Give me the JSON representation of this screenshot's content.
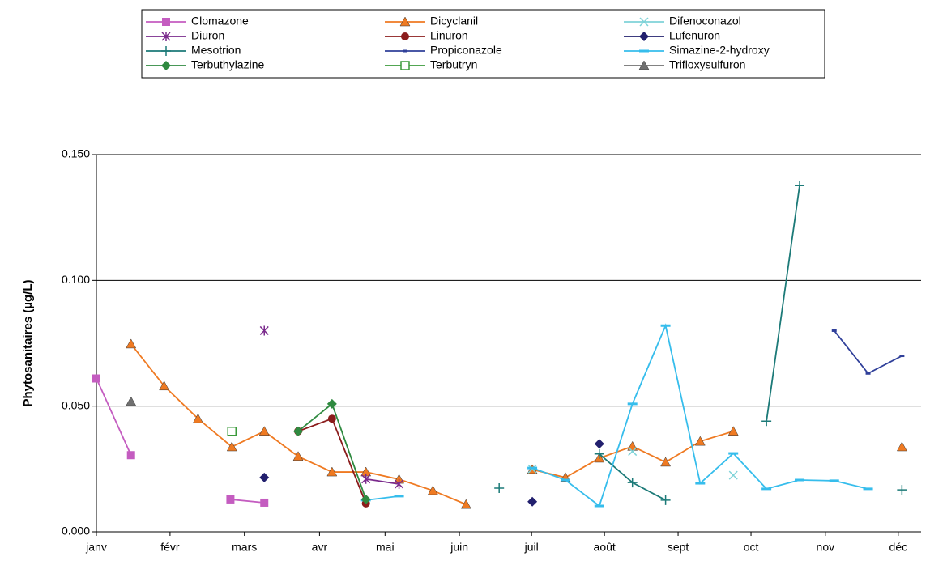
{
  "chart_data": {
    "type": "line",
    "y_label": "Phytosanitaires (µg/L)",
    "xlim": [
      0,
      11.2
    ],
    "xticks": [
      {
        "value": 0,
        "label": "janv"
      },
      {
        "value": 1.0,
        "label": "févr"
      },
      {
        "value": 2.01,
        "label": "mars"
      },
      {
        "value": 3.03,
        "label": "avr"
      },
      {
        "value": 3.92,
        "label": "mai"
      },
      {
        "value": 4.93,
        "label": "juin"
      },
      {
        "value": 5.91,
        "label": "juil"
      },
      {
        "value": 6.9,
        "label": "août"
      },
      {
        "value": 7.9,
        "label": "sept"
      },
      {
        "value": 8.89,
        "label": "oct"
      },
      {
        "value": 9.9,
        "label": "nov"
      },
      {
        "value": 10.89,
        "label": "déc"
      }
    ],
    "ylim": [
      0,
      0.15
    ],
    "yticks": [
      {
        "value": 0,
        "label": "0.000"
      },
      {
        "value": 0.05,
        "label": "0.050"
      },
      {
        "value": 0.1,
        "label": "0.100"
      },
      {
        "value": 0.15,
        "label": "0.150"
      }
    ],
    "grid": true,
    "legend": "top",
    "series": [
      {
        "name": "Clomazone",
        "color": "#c45cc0",
        "marker": "square",
        "x": [
          0,
          0.47,
          null,
          1.82,
          2.28
        ],
        "values": [
          0.061,
          0.0305,
          null,
          0.0129,
          0.0116
        ]
      },
      {
        "name": "Dicyclanil",
        "color": "#ef7a22",
        "marker": "triangle",
        "x": [
          0.47,
          0.92,
          1.38,
          1.84,
          2.28,
          2.74,
          3.2,
          3.66,
          4.11,
          4.57,
          5.02,
          null,
          5.92,
          6.37,
          6.83,
          7.28,
          7.73,
          8.2,
          8.65,
          null,
          10.94
        ],
        "values": [
          0.0747,
          0.058,
          0.045,
          0.0338,
          0.04,
          0.03,
          0.0238,
          0.0238,
          0.0209,
          0.0164,
          0.0109,
          null,
          0.0248,
          0.0216,
          0.0293,
          0.034,
          0.0277,
          0.036,
          0.04,
          null,
          0.0338
        ]
      },
      {
        "name": "Difenoconazol",
        "color": "#7fd3d8",
        "marker": "x",
        "x": [
          5.92,
          null,
          7.28,
          null,
          8.65
        ],
        "values": [
          0.025,
          null,
          0.032,
          null,
          0.0225
        ]
      },
      {
        "name": "Diuron",
        "color": "#7a2a8c",
        "marker": "star",
        "x": [
          2.28,
          null,
          3.66,
          4.11
        ],
        "values": [
          0.08,
          null,
          0.021,
          0.019
        ]
      },
      {
        "name": "Linuron",
        "color": "#8b1c1c",
        "marker": "circle",
        "x": [
          2.74,
          3.2,
          3.66
        ],
        "values": [
          0.04,
          0.045,
          0.0113
        ]
      },
      {
        "name": "Lufenuron",
        "color": "#22206e",
        "marker": "diamond",
        "x": [
          2.28,
          null,
          5.92,
          null,
          6.83
        ],
        "values": [
          0.0216,
          null,
          0.012,
          null,
          0.035
        ]
      },
      {
        "name": "Mesotrion",
        "color": "#1c7a78",
        "marker": "plus",
        "x": [
          5.47,
          null,
          6.83,
          7.28,
          7.73,
          null,
          9.1,
          9.55,
          null,
          10.94
        ],
        "values": [
          0.0174,
          null,
          0.031,
          0.0196,
          0.0126,
          null,
          0.044,
          0.1377,
          null,
          0.0167
        ]
      },
      {
        "name": "Propiconazole",
        "color": "#30409a",
        "marker": "dash",
        "x": [
          10.02,
          10.48,
          10.94
        ],
        "values": [
          0.08,
          0.063,
          0.07
        ]
      },
      {
        "name": "Simazine-2-hydroxy",
        "color": "#36bdec",
        "marker": "bar",
        "x": [
          3.66,
          4.11,
          null,
          5.92,
          6.37,
          6.83,
          7.28,
          7.73,
          8.2,
          8.65,
          9.1,
          9.55,
          10.02,
          10.48
        ],
        "values": [
          0.0126,
          0.0142,
          null,
          0.0254,
          0.0206,
          0.0103,
          0.0509,
          0.082,
          0.0193,
          0.0312,
          0.0171,
          0.0206,
          0.0203,
          0.0171
        ]
      },
      {
        "name": "Terbuthylazine",
        "color": "#2f8a40",
        "marker": "diamond",
        "x": [
          2.74,
          3.2,
          3.66
        ],
        "values": [
          0.04,
          0.0509,
          0.0129
        ]
      },
      {
        "name": "Terbutryn",
        "color": "#3a9a3a",
        "marker": "square-open",
        "x": [
          1.84
        ],
        "values": [
          0.04
        ]
      },
      {
        "name": "Trifloxysulfuron",
        "color": "#707070",
        "marker": "triangle",
        "x": [
          0.47
        ],
        "values": [
          0.0518
        ]
      }
    ]
  }
}
